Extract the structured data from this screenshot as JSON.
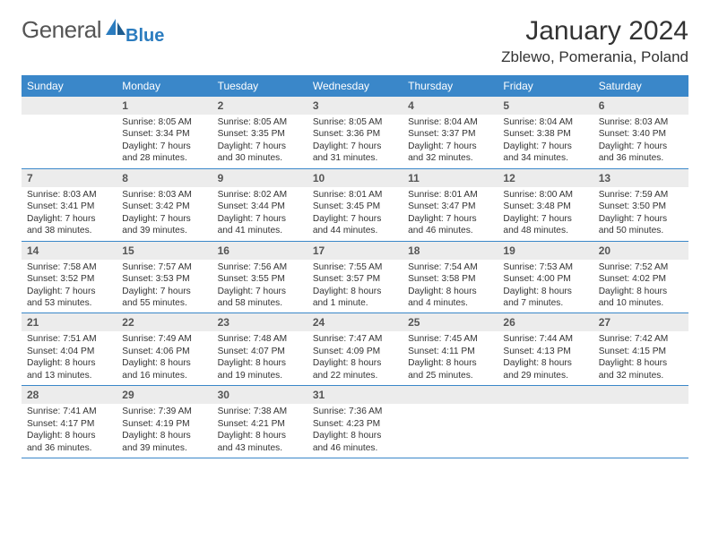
{
  "logo": {
    "text1": "General",
    "text2": "Blue"
  },
  "title": "January 2024",
  "location": "Zblewo, Pomerania, Poland",
  "weekdays": [
    "Sunday",
    "Monday",
    "Tuesday",
    "Wednesday",
    "Thursday",
    "Friday",
    "Saturday"
  ],
  "colors": {
    "header_bar": "#3a87c9",
    "daynum_bg": "#ececec",
    "logo_gray": "#555555",
    "logo_blue": "#2b7cbf",
    "rule": "#3a87c9"
  },
  "weeks": [
    [
      {
        "blank": true
      },
      {
        "n": "1",
        "sunrise": "Sunrise: 8:05 AM",
        "sunset": "Sunset: 3:34 PM",
        "day1": "Daylight: 7 hours",
        "day2": "and 28 minutes."
      },
      {
        "n": "2",
        "sunrise": "Sunrise: 8:05 AM",
        "sunset": "Sunset: 3:35 PM",
        "day1": "Daylight: 7 hours",
        "day2": "and 30 minutes."
      },
      {
        "n": "3",
        "sunrise": "Sunrise: 8:05 AM",
        "sunset": "Sunset: 3:36 PM",
        "day1": "Daylight: 7 hours",
        "day2": "and 31 minutes."
      },
      {
        "n": "4",
        "sunrise": "Sunrise: 8:04 AM",
        "sunset": "Sunset: 3:37 PM",
        "day1": "Daylight: 7 hours",
        "day2": "and 32 minutes."
      },
      {
        "n": "5",
        "sunrise": "Sunrise: 8:04 AM",
        "sunset": "Sunset: 3:38 PM",
        "day1": "Daylight: 7 hours",
        "day2": "and 34 minutes."
      },
      {
        "n": "6",
        "sunrise": "Sunrise: 8:03 AM",
        "sunset": "Sunset: 3:40 PM",
        "day1": "Daylight: 7 hours",
        "day2": "and 36 minutes."
      }
    ],
    [
      {
        "n": "7",
        "sunrise": "Sunrise: 8:03 AM",
        "sunset": "Sunset: 3:41 PM",
        "day1": "Daylight: 7 hours",
        "day2": "and 38 minutes."
      },
      {
        "n": "8",
        "sunrise": "Sunrise: 8:03 AM",
        "sunset": "Sunset: 3:42 PM",
        "day1": "Daylight: 7 hours",
        "day2": "and 39 minutes."
      },
      {
        "n": "9",
        "sunrise": "Sunrise: 8:02 AM",
        "sunset": "Sunset: 3:44 PM",
        "day1": "Daylight: 7 hours",
        "day2": "and 41 minutes."
      },
      {
        "n": "10",
        "sunrise": "Sunrise: 8:01 AM",
        "sunset": "Sunset: 3:45 PM",
        "day1": "Daylight: 7 hours",
        "day2": "and 44 minutes."
      },
      {
        "n": "11",
        "sunrise": "Sunrise: 8:01 AM",
        "sunset": "Sunset: 3:47 PM",
        "day1": "Daylight: 7 hours",
        "day2": "and 46 minutes."
      },
      {
        "n": "12",
        "sunrise": "Sunrise: 8:00 AM",
        "sunset": "Sunset: 3:48 PM",
        "day1": "Daylight: 7 hours",
        "day2": "and 48 minutes."
      },
      {
        "n": "13",
        "sunrise": "Sunrise: 7:59 AM",
        "sunset": "Sunset: 3:50 PM",
        "day1": "Daylight: 7 hours",
        "day2": "and 50 minutes."
      }
    ],
    [
      {
        "n": "14",
        "sunrise": "Sunrise: 7:58 AM",
        "sunset": "Sunset: 3:52 PM",
        "day1": "Daylight: 7 hours",
        "day2": "and 53 minutes."
      },
      {
        "n": "15",
        "sunrise": "Sunrise: 7:57 AM",
        "sunset": "Sunset: 3:53 PM",
        "day1": "Daylight: 7 hours",
        "day2": "and 55 minutes."
      },
      {
        "n": "16",
        "sunrise": "Sunrise: 7:56 AM",
        "sunset": "Sunset: 3:55 PM",
        "day1": "Daylight: 7 hours",
        "day2": "and 58 minutes."
      },
      {
        "n": "17",
        "sunrise": "Sunrise: 7:55 AM",
        "sunset": "Sunset: 3:57 PM",
        "day1": "Daylight: 8 hours",
        "day2": "and 1 minute."
      },
      {
        "n": "18",
        "sunrise": "Sunrise: 7:54 AM",
        "sunset": "Sunset: 3:58 PM",
        "day1": "Daylight: 8 hours",
        "day2": "and 4 minutes."
      },
      {
        "n": "19",
        "sunrise": "Sunrise: 7:53 AM",
        "sunset": "Sunset: 4:00 PM",
        "day1": "Daylight: 8 hours",
        "day2": "and 7 minutes."
      },
      {
        "n": "20",
        "sunrise": "Sunrise: 7:52 AM",
        "sunset": "Sunset: 4:02 PM",
        "day1": "Daylight: 8 hours",
        "day2": "and 10 minutes."
      }
    ],
    [
      {
        "n": "21",
        "sunrise": "Sunrise: 7:51 AM",
        "sunset": "Sunset: 4:04 PM",
        "day1": "Daylight: 8 hours",
        "day2": "and 13 minutes."
      },
      {
        "n": "22",
        "sunrise": "Sunrise: 7:49 AM",
        "sunset": "Sunset: 4:06 PM",
        "day1": "Daylight: 8 hours",
        "day2": "and 16 minutes."
      },
      {
        "n": "23",
        "sunrise": "Sunrise: 7:48 AM",
        "sunset": "Sunset: 4:07 PM",
        "day1": "Daylight: 8 hours",
        "day2": "and 19 minutes."
      },
      {
        "n": "24",
        "sunrise": "Sunrise: 7:47 AM",
        "sunset": "Sunset: 4:09 PM",
        "day1": "Daylight: 8 hours",
        "day2": "and 22 minutes."
      },
      {
        "n": "25",
        "sunrise": "Sunrise: 7:45 AM",
        "sunset": "Sunset: 4:11 PM",
        "day1": "Daylight: 8 hours",
        "day2": "and 25 minutes."
      },
      {
        "n": "26",
        "sunrise": "Sunrise: 7:44 AM",
        "sunset": "Sunset: 4:13 PM",
        "day1": "Daylight: 8 hours",
        "day2": "and 29 minutes."
      },
      {
        "n": "27",
        "sunrise": "Sunrise: 7:42 AM",
        "sunset": "Sunset: 4:15 PM",
        "day1": "Daylight: 8 hours",
        "day2": "and 32 minutes."
      }
    ],
    [
      {
        "n": "28",
        "sunrise": "Sunrise: 7:41 AM",
        "sunset": "Sunset: 4:17 PM",
        "day1": "Daylight: 8 hours",
        "day2": "and 36 minutes."
      },
      {
        "n": "29",
        "sunrise": "Sunrise: 7:39 AM",
        "sunset": "Sunset: 4:19 PM",
        "day1": "Daylight: 8 hours",
        "day2": "and 39 minutes."
      },
      {
        "n": "30",
        "sunrise": "Sunrise: 7:38 AM",
        "sunset": "Sunset: 4:21 PM",
        "day1": "Daylight: 8 hours",
        "day2": "and 43 minutes."
      },
      {
        "n": "31",
        "sunrise": "Sunrise: 7:36 AM",
        "sunset": "Sunset: 4:23 PM",
        "day1": "Daylight: 8 hours",
        "day2": "and 46 minutes."
      },
      {
        "blank": true
      },
      {
        "blank": true
      },
      {
        "blank": true
      }
    ]
  ]
}
